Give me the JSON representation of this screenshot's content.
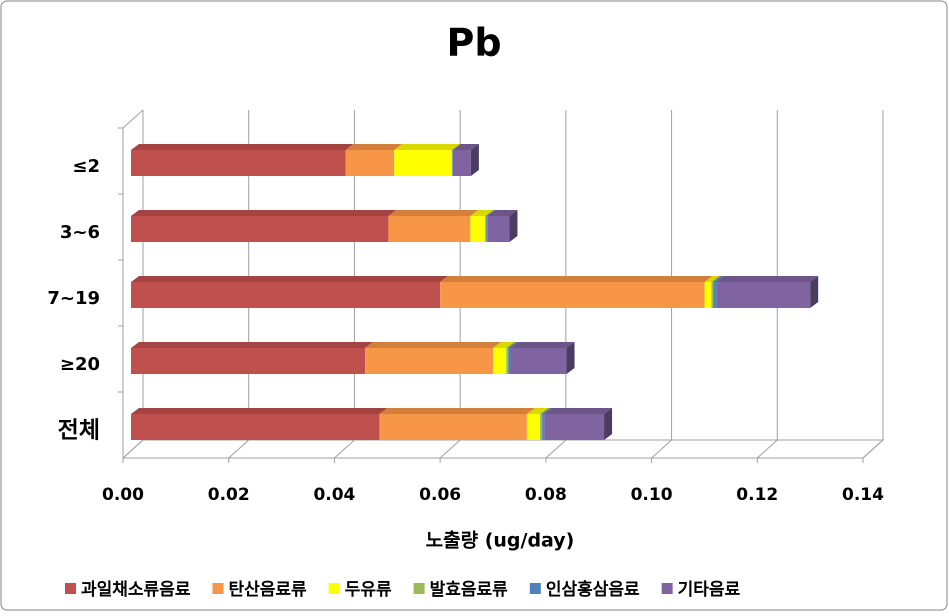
{
  "chart_data": {
    "type": "stacked-bar-horizontal-3d",
    "title": "Pb",
    "x_label": "노출량 (ug/day)",
    "categories": [
      "≤2",
      "3~6",
      "7~19",
      "≥20",
      "전체"
    ],
    "series": [
      {
        "name": "과일채소류음료",
        "color": "#c0504d",
        "values": [
          0.0406,
          0.0487,
          0.0585,
          0.0443,
          0.047
        ]
      },
      {
        "name": "탄산음료류",
        "color": "#f79646",
        "values": [
          0.0092,
          0.0155,
          0.05,
          0.0242,
          0.0279
        ]
      },
      {
        "name": "두유류",
        "color": "#ffff00",
        "values": [
          0.0109,
          0.0028,
          0.0013,
          0.0025,
          0.0025
        ]
      },
      {
        "name": "발효음료류",
        "color": "#9bbb59",
        "values": [
          0.0001,
          0.0002,
          0.0004,
          0.0004,
          0.0004
        ]
      },
      {
        "name": "인삼홍삼음료",
        "color": "#4f81bd",
        "values": [
          0.0001,
          0.0002,
          0.0006,
          0.0004,
          0.0004
        ]
      },
      {
        "name": "기타음료",
        "color": "#8064a2",
        "values": [
          0.0034,
          0.0042,
          0.0177,
          0.0106,
          0.0113
        ]
      }
    ],
    "xlim": [
      0,
      0.14
    ],
    "xticks": [
      {
        "value": 0,
        "label": "0.00"
      },
      {
        "value": 0.02,
        "label": "0.02"
      },
      {
        "value": 0.04,
        "label": "0.04"
      },
      {
        "value": 0.06,
        "label": "0.06"
      },
      {
        "value": 0.08,
        "label": "0.08"
      },
      {
        "value": 0.1,
        "label": "0.10"
      },
      {
        "value": 0.12,
        "label": "0.12"
      },
      {
        "value": 0.14,
        "label": "0.14"
      }
    ],
    "grid": true
  }
}
